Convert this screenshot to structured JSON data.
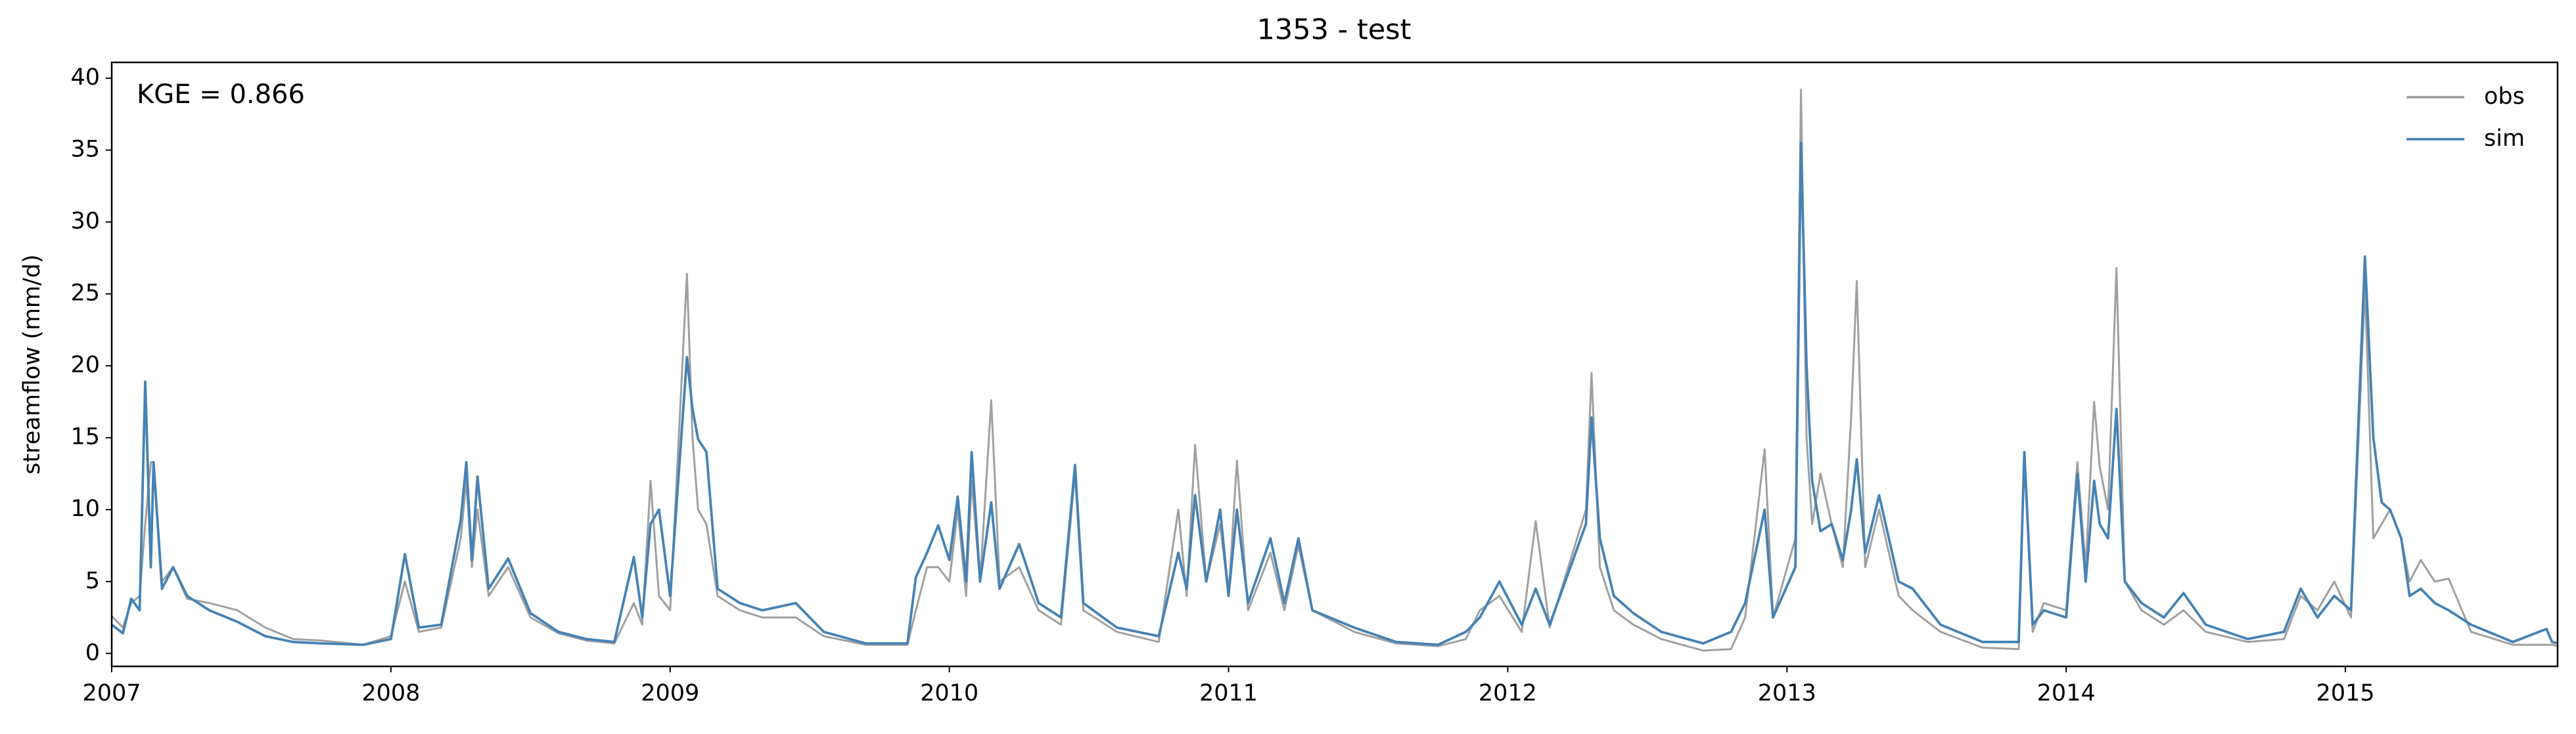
{
  "chart_data": {
    "type": "line",
    "title": "1353 - test",
    "ylabel": "streamflow (mm/d)",
    "annotation": "KGE = 0.866",
    "x": [
      2007.0,
      2007.04,
      2007.07,
      2007.1,
      2007.12,
      2007.14,
      2007.15,
      2007.18,
      2007.22,
      2007.27,
      2007.35,
      2007.45,
      2007.55,
      2007.65,
      2007.75,
      2007.9,
      2008.0,
      2008.05,
      2008.1,
      2008.18,
      2008.25,
      2008.27,
      2008.29,
      2008.31,
      2008.35,
      2008.42,
      2008.5,
      2008.6,
      2008.7,
      2008.8,
      2008.87,
      2008.9,
      2008.93,
      2008.96,
      2009.0,
      2009.06,
      2009.08,
      2009.1,
      2009.13,
      2009.17,
      2009.25,
      2009.33,
      2009.45,
      2009.55,
      2009.7,
      2009.85,
      2009.88,
      2009.92,
      2009.96,
      2010.0,
      2010.03,
      2010.06,
      2010.08,
      2010.11,
      2010.15,
      2010.18,
      2010.25,
      2010.32,
      2010.4,
      2010.45,
      2010.48,
      2010.6,
      2010.75,
      2010.82,
      2010.85,
      2010.88,
      2010.92,
      2010.97,
      2011.0,
      2011.03,
      2011.07,
      2011.15,
      2011.2,
      2011.25,
      2011.3,
      2011.45,
      2011.6,
      2011.75,
      2011.85,
      2011.9,
      2011.97,
      2012.05,
      2012.1,
      2012.15,
      2012.28,
      2012.3,
      2012.33,
      2012.38,
      2012.45,
      2012.55,
      2012.7,
      2012.8,
      2012.85,
      2012.92,
      2012.95,
      2013.03,
      2013.05,
      2013.07,
      2013.09,
      2013.12,
      2013.16,
      2013.2,
      2013.23,
      2013.25,
      2013.28,
      2013.33,
      2013.4,
      2013.45,
      2013.55,
      2013.7,
      2013.83,
      2013.85,
      2013.88,
      2013.92,
      2014.0,
      2014.04,
      2014.07,
      2014.1,
      2014.12,
      2014.15,
      2014.18,
      2014.21,
      2014.27,
      2014.35,
      2014.42,
      2014.5,
      2014.65,
      2014.78,
      2014.84,
      2014.9,
      2014.96,
      2015.02,
      2015.07,
      2015.1,
      2015.13,
      2015.16,
      2015.2,
      2015.23,
      2015.27,
      2015.32,
      2015.37,
      2015.45,
      2015.6,
      2015.72,
      2015.74,
      2015.76
    ],
    "series": [
      {
        "name": "obs",
        "color": "#a0a0a0",
        "values": [
          2.6,
          1.8,
          3.5,
          4.0,
          9.0,
          13.3,
          13.3,
          5.0,
          6.0,
          3.8,
          3.5,
          3.0,
          1.8,
          1.0,
          0.9,
          0.6,
          1.2,
          5.0,
          1.5,
          1.8,
          8.0,
          12.0,
          6.0,
          10.0,
          4.0,
          6.0,
          2.5,
          1.4,
          0.9,
          0.7,
          3.5,
          2.0,
          12.0,
          4.0,
          3.0,
          26.4,
          15.0,
          10.0,
          9.0,
          4.0,
          3.0,
          2.5,
          2.5,
          1.2,
          0.6,
          0.6,
          3.0,
          6.0,
          6.0,
          5.0,
          10.0,
          4.0,
          12.0,
          5.0,
          17.6,
          5.0,
          6.0,
          3.0,
          2.0,
          12.5,
          3.0,
          1.5,
          0.8,
          10.0,
          4.0,
          14.5,
          5.0,
          9.0,
          4.0,
          13.4,
          3.0,
          7.0,
          3.0,
          7.5,
          3.0,
          1.5,
          0.7,
          0.5,
          1.0,
          3.0,
          4.0,
          1.5,
          9.2,
          1.8,
          10.0,
          19.5,
          6.0,
          3.0,
          2.0,
          1.0,
          0.2,
          0.3,
          2.5,
          14.2,
          2.5,
          8.0,
          39.2,
          15.0,
          9.0,
          12.5,
          9.0,
          6.0,
          16.5,
          25.9,
          6.0,
          10.0,
          4.0,
          3.0,
          1.5,
          0.4,
          0.3,
          13.5,
          1.5,
          3.5,
          3.0,
          13.3,
          6.0,
          17.5,
          13.0,
          10.0,
          26.8,
          5.0,
          3.0,
          2.0,
          3.0,
          1.5,
          0.8,
          1.0,
          4.0,
          3.0,
          5.0,
          2.5,
          25.5,
          8.0,
          9.0,
          10.0,
          8.0,
          5.0,
          6.5,
          5.0,
          5.2,
          1.5,
          0.6,
          0.6,
          0.6,
          0.5
        ]
      },
      {
        "name": "sim",
        "color": "#4682b4",
        "values": [
          2.0,
          1.4,
          3.8,
          3.0,
          18.9,
          6.0,
          13.3,
          4.5,
          6.0,
          4.0,
          3.0,
          2.2,
          1.2,
          0.8,
          0.7,
          0.6,
          1.0,
          6.9,
          1.8,
          2.0,
          9.3,
          13.3,
          6.5,
          12.3,
          4.5,
          6.6,
          2.8,
          1.5,
          1.0,
          0.8,
          6.7,
          2.5,
          9.0,
          10.0,
          4.0,
          20.6,
          17.0,
          14.9,
          14.0,
          4.5,
          3.5,
          3.0,
          3.5,
          1.5,
          0.7,
          0.7,
          5.3,
          7.0,
          8.9,
          6.5,
          10.9,
          5.0,
          14.0,
          5.0,
          10.5,
          4.5,
          7.6,
          3.5,
          2.5,
          13.1,
          3.5,
          1.8,
          1.2,
          7.0,
          4.5,
          11.0,
          5.0,
          10.0,
          4.0,
          10.0,
          3.5,
          8.0,
          3.5,
          8.0,
          3.0,
          1.8,
          0.8,
          0.6,
          1.5,
          2.5,
          5.0,
          2.0,
          4.5,
          2.0,
          9.0,
          16.4,
          8.0,
          4.0,
          2.8,
          1.5,
          0.7,
          1.5,
          3.5,
          10.0,
          2.5,
          6.0,
          35.5,
          20.0,
          12.0,
          8.5,
          9.0,
          6.5,
          10.0,
          13.5,
          7.0,
          11.0,
          5.0,
          4.5,
          2.0,
          0.8,
          0.8,
          14.0,
          2.0,
          3.0,
          2.5,
          12.5,
          5.0,
          12.0,
          9.0,
          8.0,
          17.0,
          5.0,
          3.5,
          2.5,
          4.2,
          2.0,
          1.0,
          1.5,
          4.5,
          2.5,
          4.0,
          3.0,
          27.6,
          15.0,
          10.5,
          10.0,
          8.0,
          4.0,
          4.5,
          3.5,
          3.0,
          2.0,
          0.8,
          1.7,
          0.8,
          0.7
        ]
      }
    ],
    "xlim": [
      2007,
      2015.76
    ],
    "xticks": [
      2007,
      2008,
      2009,
      2010,
      2011,
      2012,
      2013,
      2014,
      2015
    ],
    "ylim": [
      -0.9,
      41.1
    ],
    "yticks": [
      0,
      5,
      10,
      15,
      20,
      25,
      30,
      35,
      40
    ],
    "legend": "upper right"
  }
}
